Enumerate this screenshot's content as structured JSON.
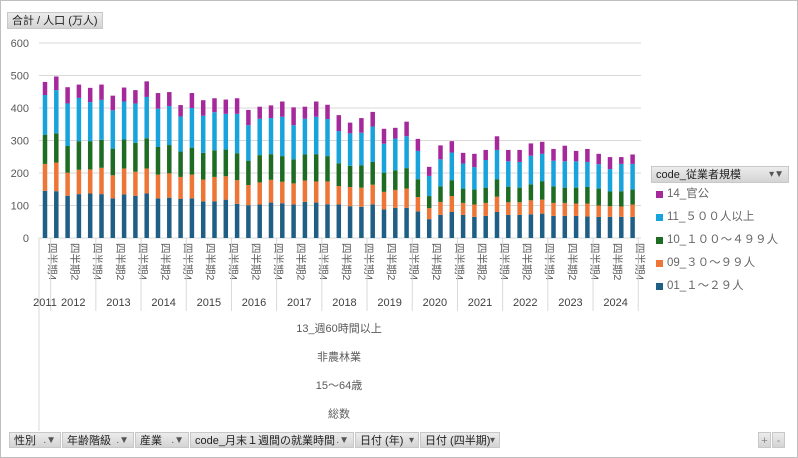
{
  "value_field_button": "合計 / 人口 (万人)",
  "legend": {
    "title": "code_従業者規模",
    "items": [
      {
        "label": "14_官公",
        "color": "#A5299A"
      },
      {
        "label": "11_５００人以上",
        "color": "#18A3DC"
      },
      {
        "label": "10_１００～４９９人",
        "color": "#1E6B23"
      },
      {
        "label": "09_３０～９９人",
        "color": "#ED7535"
      },
      {
        "label": "01_１～２９人",
        "color": "#1F5F85"
      }
    ]
  },
  "axis_groups": [
    "13_週60時間以上",
    "非農林業",
    "15～64歳",
    "総数"
  ],
  "filters": [
    {
      "label": "性別",
      "icon": "filter-icon"
    },
    {
      "label": "年齢階級",
      "icon": "filter-icon"
    },
    {
      "label": "産業",
      "icon": "filter-icon"
    },
    {
      "label": "code_月末１週間の就業時間",
      "icon": "filter-icon"
    },
    {
      "label": "日付 (年)",
      "icon": "dropdown-icon"
    },
    {
      "label": "日付 (四半期)",
      "icon": "dropdown-icon"
    }
  ],
  "zoom_buttons": {
    "plus": "+",
    "minus": "-"
  },
  "chart_data": {
    "type": "bar",
    "stacked": true,
    "ylabel": "人口 (万人)",
    "ylim": [
      0,
      600
    ],
    "yticks": [
      "0",
      "100",
      "200",
      "300",
      "400",
      "500",
      "600"
    ],
    "grid": true,
    "legend_position": "right",
    "years": [
      "2011",
      "2012",
      "2013",
      "2014",
      "2015",
      "2016",
      "2017",
      "2018",
      "2019",
      "2020",
      "2021",
      "2022",
      "2023",
      "2024"
    ],
    "quarter_label_prefix": "四半期",
    "first_quarter": 4,
    "series": [
      {
        "name": "01_１～２９人",
        "values": [
          145,
          144,
          130,
          135,
          137,
          135,
          122,
          134,
          130,
          137,
          122,
          124,
          120,
          122,
          113,
          113,
          118,
          105,
          101,
          103,
          109,
          107,
          103,
          111,
          109,
          104,
          103,
          98,
          96,
          103,
          88,
          93,
          93,
          82,
          58,
          71,
          80,
          71,
          65,
          68,
          80,
          71,
          71,
          73,
          75,
          68,
          68,
          68,
          66,
          65,
          65,
          65,
          65
        ]
      },
      {
        "name": "09_３０～９９人",
        "values": [
          83,
          88,
          71,
          75,
          74,
          81,
          71,
          80,
          74,
          77,
          73,
          75,
          68,
          73,
          67,
          75,
          72,
          73,
          62,
          68,
          70,
          66,
          65,
          66,
          65,
          70,
          57,
          59,
          59,
          61,
          54,
          55,
          59,
          44,
          34,
          40,
          49,
          37,
          38,
          40,
          47,
          39,
          39,
          43,
          43,
          40,
          40,
          38,
          40,
          35,
          33,
          32,
          38
        ]
      },
      {
        "name": "10_１００～４９９人",
        "values": [
          90,
          90,
          82,
          88,
          87,
          86,
          82,
          89,
          89,
          93,
          85,
          87,
          78,
          83,
          82,
          82,
          82,
          83,
          75,
          84,
          79,
          79,
          74,
          80,
          84,
          78,
          70,
          65,
          69,
          70,
          59,
          60,
          63,
          55,
          37,
          48,
          49,
          44,
          46,
          47,
          54,
          48,
          45,
          49,
          57,
          51,
          47,
          49,
          51,
          52,
          45,
          47,
          46
        ]
      },
      {
        "name": "11_５００人以上",
        "values": [
          122,
          133,
          131,
          133,
          120,
          123,
          118,
          117,
          121,
          127,
          118,
          120,
          108,
          122,
          114,
          117,
          110,
          121,
          109,
          112,
          111,
          121,
          105,
          110,
          115,
          114,
          99,
          100,
          100,
          109,
          89,
          98,
          98,
          87,
          62,
          83,
          85,
          77,
          69,
          85,
          90,
          78,
          79,
          88,
          84,
          79,
          81,
          81,
          77,
          75,
          69,
          84,
          79
        ]
      },
      {
        "name": "14_官公",
        "values": [
          40,
          42,
          50,
          41,
          44,
          47,
          45,
          43,
          41,
          48,
          48,
          43,
          35,
          46,
          48,
          43,
          44,
          48,
          47,
          37,
          39,
          47,
          55,
          37,
          47,
          44,
          49,
          33,
          45,
          45,
          46,
          33,
          45,
          37,
          28,
          43,
          35,
          33,
          41,
          31,
          42,
          35,
          37,
          38,
          37,
          36,
          48,
          32,
          40,
          32,
          37,
          21,
          29
        ]
      }
    ]
  }
}
